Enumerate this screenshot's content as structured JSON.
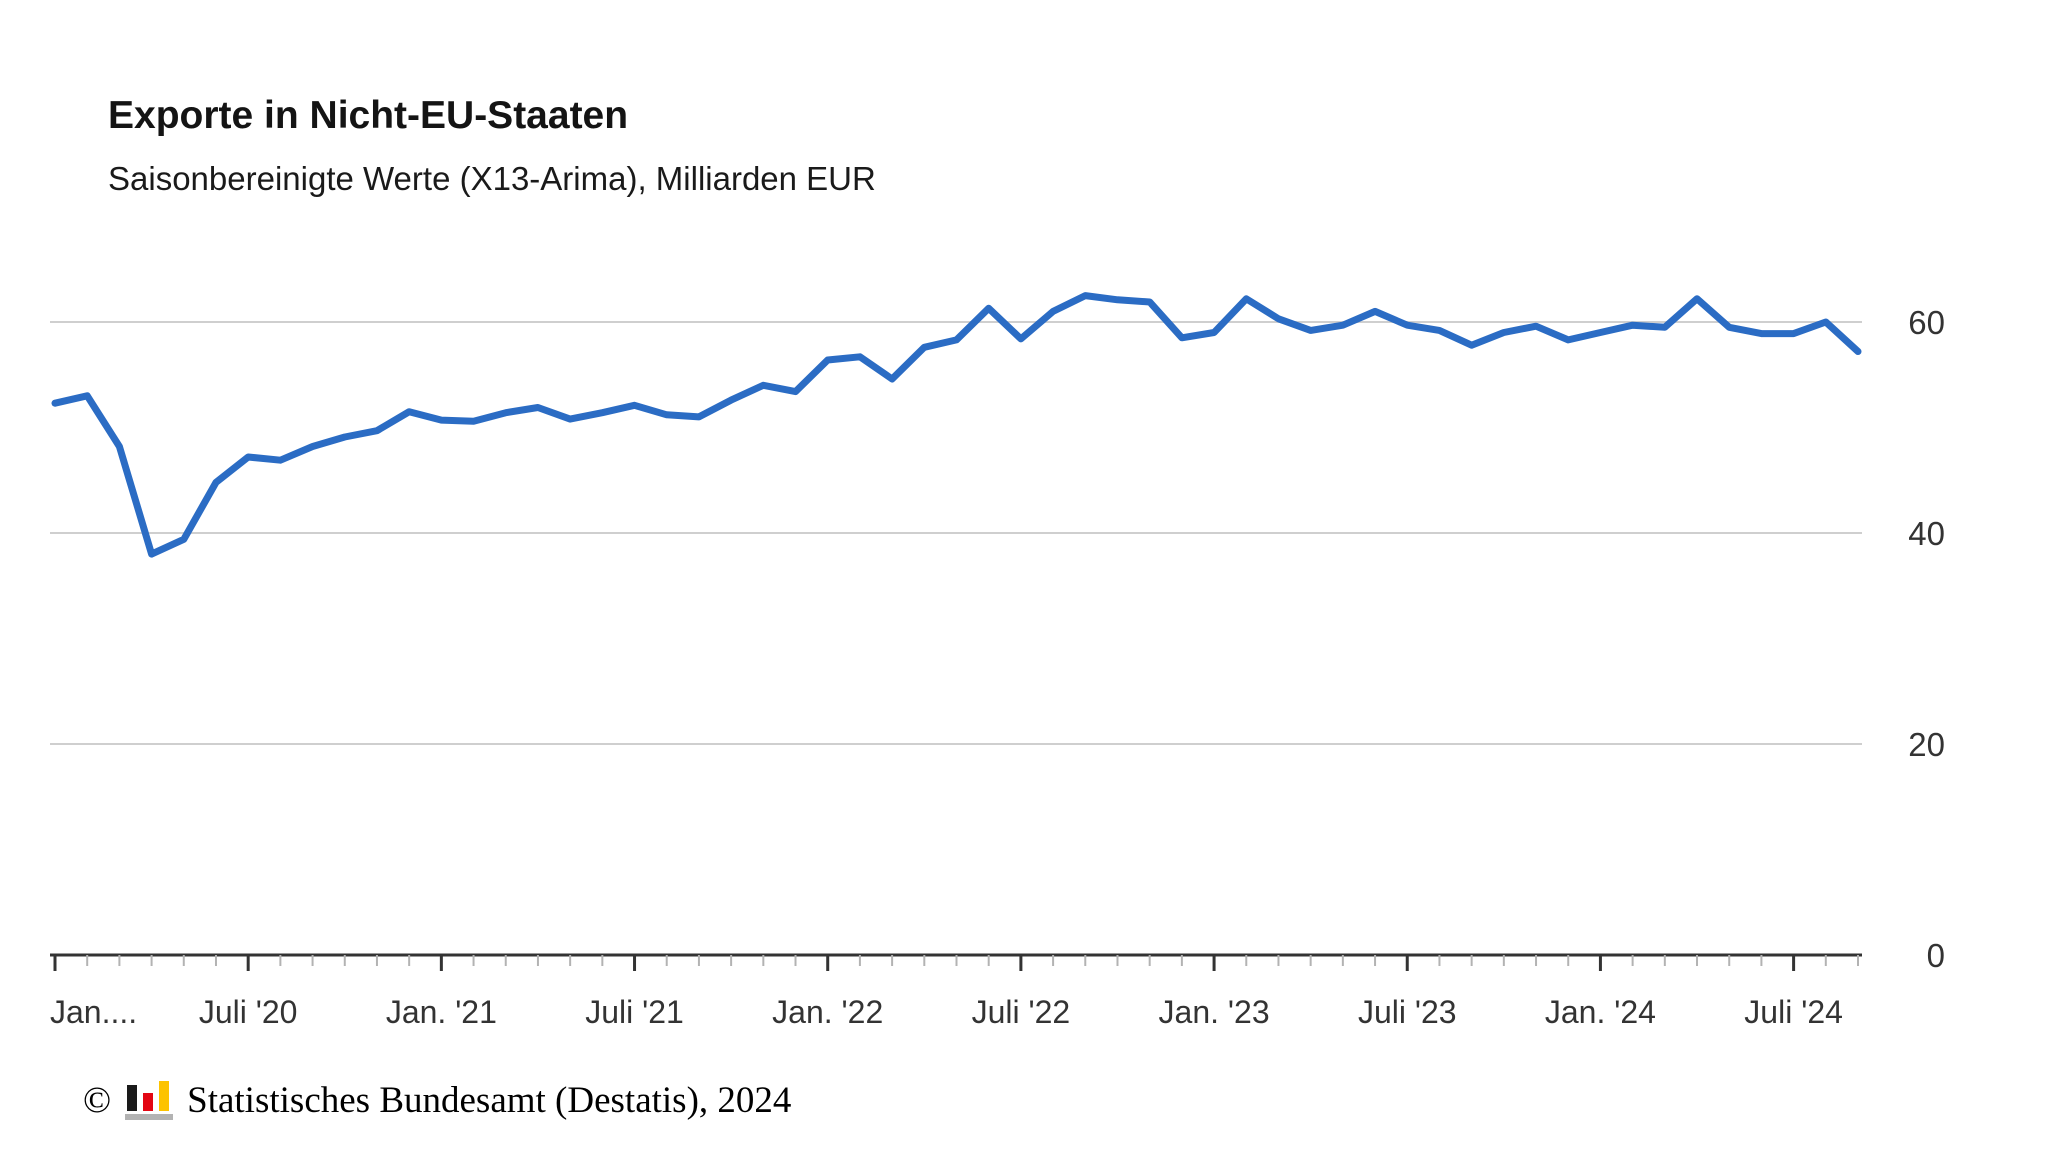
{
  "header": {
    "title": "Exporte in Nicht-EU-Staaten",
    "subtitle": "Saisonbereinigte Werte (X13-Arima), Milliarden EUR"
  },
  "footer": {
    "copyright": "©",
    "text": "Statistisches Bundesamt (Destatis), 2024",
    "logo_colors": {
      "black": "#1a1a1a",
      "red": "#e30613",
      "yellow": "#fdc300",
      "gray": "#b3b3b3"
    }
  },
  "chart_data": {
    "type": "line",
    "title": "Exporte in Nicht-EU-Staaten",
    "subtitle": "Saisonbereinigte Werte (X13-Arima), Milliarden EUR",
    "unit": "Milliarden EUR",
    "legend": "none",
    "grid": "horizontal",
    "y_axis_side": "right",
    "ylim": [
      0,
      68
    ],
    "y_ticks": [
      60,
      40,
      20,
      0
    ],
    "y_gridlines": [
      60,
      40,
      20
    ],
    "x_major_every": 6,
    "x_tick_labels": [
      "Jan....",
      "Juli '20",
      "Jan. '21",
      "Juli '21",
      "Jan. '22",
      "Juli '22",
      "Jan. '23",
      "Juli '23",
      "Jan. '24",
      "Juli '24"
    ],
    "x_months": [
      "2020-01",
      "2020-02",
      "2020-03",
      "2020-04",
      "2020-05",
      "2020-06",
      "2020-07",
      "2020-08",
      "2020-09",
      "2020-10",
      "2020-11",
      "2020-12",
      "2021-01",
      "2021-02",
      "2021-03",
      "2021-04",
      "2021-05",
      "2021-06",
      "2021-07",
      "2021-08",
      "2021-09",
      "2021-10",
      "2021-11",
      "2021-12",
      "2022-01",
      "2022-02",
      "2022-03",
      "2022-04",
      "2022-05",
      "2022-06",
      "2022-07",
      "2022-08",
      "2022-09",
      "2022-10",
      "2022-11",
      "2022-12",
      "2023-01",
      "2023-02",
      "2023-03",
      "2023-04",
      "2023-05",
      "2023-06",
      "2023-07",
      "2023-08",
      "2023-09",
      "2023-10",
      "2023-11",
      "2023-12",
      "2024-01",
      "2024-02",
      "2024-03",
      "2024-04",
      "2024-05",
      "2024-06",
      "2024-07",
      "2024-08",
      "2024-09"
    ],
    "values": [
      52.3,
      53.0,
      48.2,
      38.0,
      39.4,
      44.8,
      47.2,
      46.9,
      48.2,
      49.1,
      49.7,
      51.5,
      50.7,
      50.6,
      51.4,
      51.9,
      50.8,
      51.4,
      52.1,
      51.2,
      51.0,
      52.6,
      54.0,
      53.4,
      56.4,
      56.7,
      54.6,
      57.6,
      58.3,
      61.3,
      58.4,
      61.0,
      62.5,
      62.1,
      61.9,
      58.5,
      59.0,
      62.2,
      60.3,
      59.2,
      59.7,
      61.0,
      59.7,
      59.2,
      57.8,
      59.0,
      59.6,
      58.3,
      59.0,
      59.7,
      59.5,
      62.2,
      59.5,
      58.9,
      58.9,
      60.0,
      57.2
    ],
    "colors": {
      "line": "#2b6cc4",
      "grid": "#cfcfcf",
      "axis": "#333333",
      "tick_minor": "#b3b3b3",
      "labels": "#333333"
    }
  }
}
